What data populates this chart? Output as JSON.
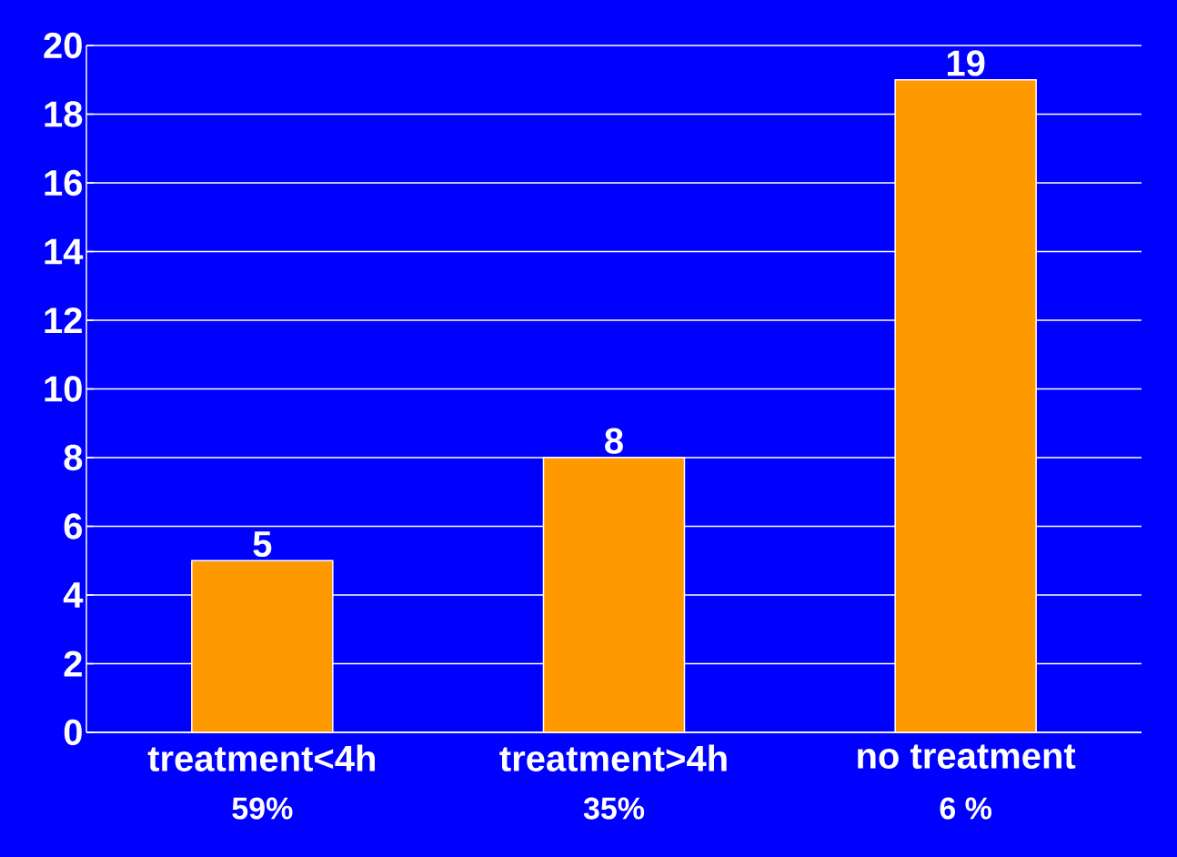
{
  "chart_data": {
    "type": "bar",
    "categories": [
      "treatment<4h",
      "treatment>4h",
      "no treatment"
    ],
    "values": [
      5,
      8,
      19
    ],
    "color": "#ff9900",
    "ylim": [
      0,
      20
    ],
    "yticks": [
      0,
      2,
      4,
      6,
      8,
      10,
      12,
      14,
      16,
      18,
      20
    ],
    "grid": "y",
    "data_labels": true,
    "annotations": [
      "59%",
      "35%",
      "6 %"
    ]
  }
}
